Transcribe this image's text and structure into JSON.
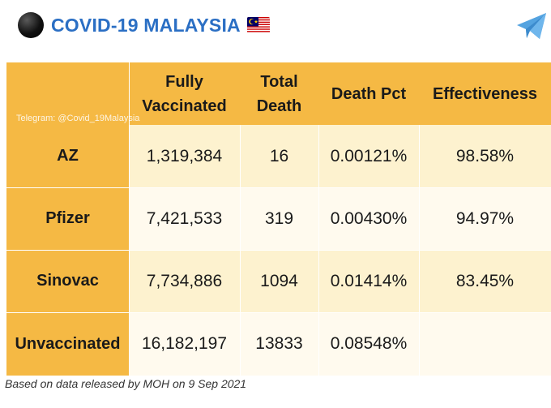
{
  "channel": {
    "title": "COVID-19 MALAYSIA",
    "avatar_icon": "black-circle-icon",
    "flag_icon": "malaysia-flag-icon",
    "telegram_icon": "telegram-send-icon",
    "title_color": "#2b6fc4"
  },
  "table": {
    "watermark": "Telegram: @Covid_19Malaysia",
    "headers": {
      "col1_line1": "Fully",
      "col1_line2": "Vaccinated",
      "col2_line1": "Total",
      "col2_line2": "Death",
      "col3": "Death Pct",
      "col4": "Effectiveness"
    },
    "rows": [
      {
        "label": "AZ",
        "fully_vaccinated": "1,319,384",
        "total_death": "16",
        "death_pct": "0.00121%",
        "effectiveness": "98.58%"
      },
      {
        "label": "Pfizer",
        "fully_vaccinated": "7,421,533",
        "total_death": "319",
        "death_pct": "0.00430%",
        "effectiveness": "94.97%"
      },
      {
        "label": "Sinovac",
        "fully_vaccinated": "7,734,886",
        "total_death": "1094",
        "death_pct": "0.01414%",
        "effectiveness": "83.45%"
      },
      {
        "label": "Unvaccinated",
        "fully_vaccinated": "16,182,197",
        "total_death": "13833",
        "death_pct": "0.08548%",
        "effectiveness": ""
      }
    ],
    "colors": {
      "header": "#f5b944",
      "row_alt": "#fdf2cf",
      "row_plain": "#fffaee"
    }
  },
  "footer": {
    "note": "Based on data released by MOH on 9 Sep 2021"
  }
}
